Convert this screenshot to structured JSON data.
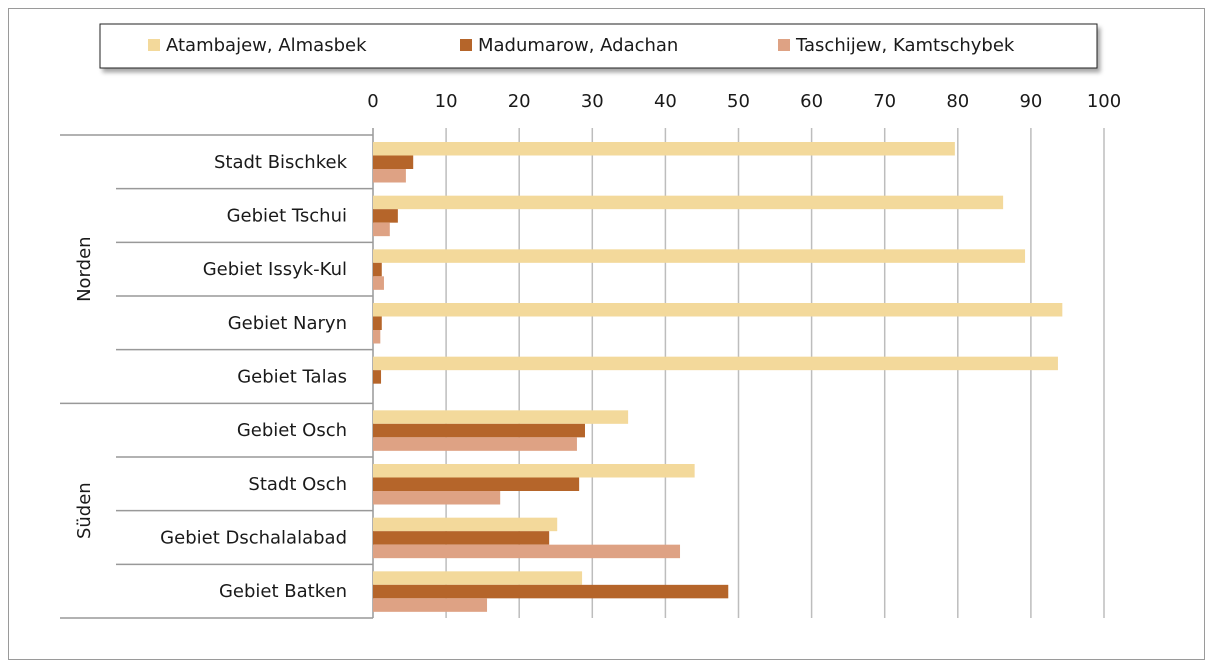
{
  "chart_data": {
    "type": "bar",
    "orientation": "horizontal",
    "groups": [
      {
        "label": "Norden",
        "categories": [
          "Stadt Bischkek",
          "Gebiet Tschui",
          "Gebiet Issyk-Kul",
          "Gebiet Naryn",
          "Gebiet Talas"
        ]
      },
      {
        "label": "Süden",
        "categories": [
          "Gebiet Osch",
          "Stadt Osch",
          "Gebiet Dschalalabad",
          "Gebiet Batken"
        ]
      }
    ],
    "series": [
      {
        "name": "Atambajew, Almasbek",
        "color": "#f3d99b",
        "values": [
          79.6,
          86.2,
          89.2,
          94.3,
          93.7,
          34.9,
          44.0,
          25.2,
          28.6
        ]
      },
      {
        "name": "Madumarow, Adachan",
        "color": "#b5652a",
        "values": [
          5.5,
          3.4,
          1.2,
          1.2,
          1.1,
          29.0,
          28.2,
          24.1,
          48.6
        ]
      },
      {
        "name": "Taschijew, Kamtschybek",
        "color": "#dea284",
        "values": [
          4.5,
          2.3,
          1.5,
          1.0,
          0,
          27.9,
          17.4,
          42.0,
          15.6
        ]
      }
    ],
    "xlim": [
      0,
      100
    ],
    "xticks": [
      0,
      10,
      20,
      30,
      40,
      50,
      60,
      70,
      80,
      90,
      100
    ],
    "grid": true,
    "legend": "top"
  }
}
